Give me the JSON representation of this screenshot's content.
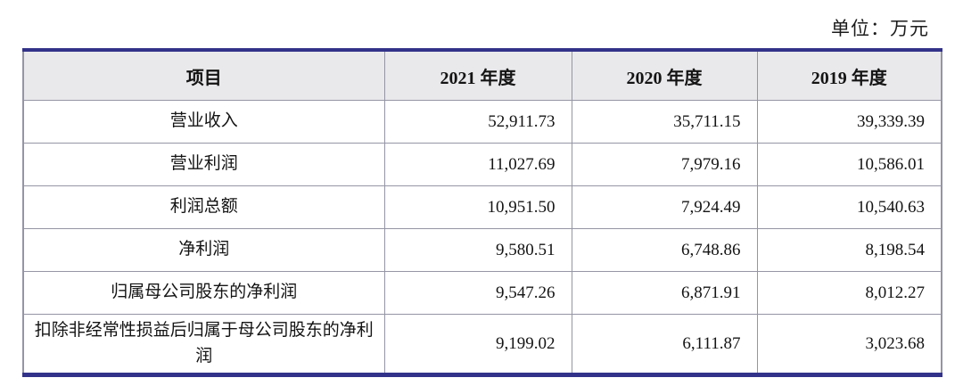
{
  "unit_note": "单位：万元",
  "table": {
    "headers": [
      "项目",
      "2021 年度",
      "2020 年度",
      "2019 年度"
    ],
    "rows": [
      {
        "label": "营业收入",
        "values": [
          "52,911.73",
          "35,711.15",
          "39,339.39"
        ]
      },
      {
        "label": "营业利润",
        "values": [
          "11,027.69",
          "7,979.16",
          "10,586.01"
        ]
      },
      {
        "label": "利润总额",
        "values": [
          "10,951.50",
          "7,924.49",
          "10,540.63"
        ]
      },
      {
        "label": "净利润",
        "values": [
          "9,580.51",
          "6,748.86",
          "8,198.54"
        ]
      },
      {
        "label": "归属母公司股东的净利润",
        "values": [
          "9,547.26",
          "6,871.91",
          "8,012.27"
        ]
      },
      {
        "label": "扣除非经常性损益后归属于母公司股东的净利润",
        "values": [
          "9,199.02",
          "6,111.87",
          "3,023.68"
        ]
      }
    ]
  }
}
